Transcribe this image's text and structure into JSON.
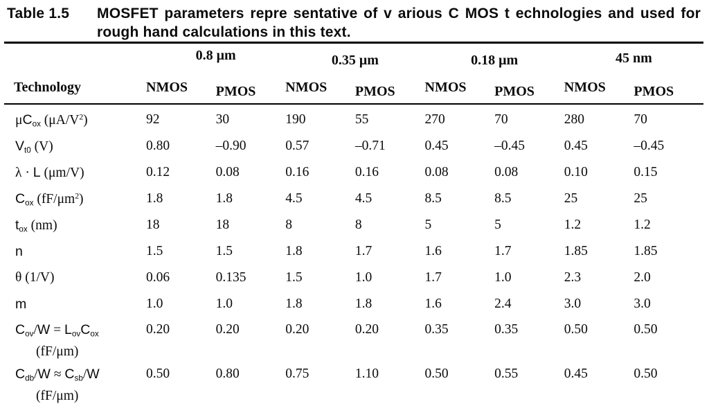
{
  "title": {
    "label": "Table 1.5",
    "caption_lines": [
      "MOSFET parameters repre sentative of v arious C MOS t echnologies and used for",
      "rough hand calculations in this text."
    ]
  },
  "table": {
    "corner_header": "Technology",
    "groups": [
      {
        "label": "0.8 μm"
      },
      {
        "label": "0.35 μm"
      },
      {
        "label": "0.18 μm"
      },
      {
        "label": "45 nm"
      }
    ],
    "subheaders": [
      "NMOS",
      "PMOS",
      "NMOS",
      "PMOS",
      "NMOS",
      "PMOS",
      "NMOS",
      "PMOS"
    ],
    "rows": [
      {
        "name": "mu-cox",
        "label_parts": [
          {
            "t": "μ",
            "f": "ser"
          },
          {
            "t": "C",
            "f": "sym"
          },
          {
            "t": "ox",
            "f": "sym",
            "v": "sub"
          },
          {
            "t": " (μA/V",
            "f": "ser"
          },
          {
            "t": "2",
            "f": "ser",
            "v": "sup"
          },
          {
            "t": ")",
            "f": "ser"
          }
        ],
        "values": [
          "92",
          "30",
          "190",
          "55",
          "270",
          "70",
          "280",
          "70"
        ]
      },
      {
        "name": "vt0",
        "label_parts": [
          {
            "t": "V",
            "f": "sym"
          },
          {
            "t": "t0",
            "f": "sym",
            "v": "sub"
          },
          {
            "t": " (V)",
            "f": "ser"
          }
        ],
        "values": [
          "0.80",
          "–0.90",
          "0.57",
          "–0.71",
          "0.45",
          "–0.45",
          "0.45",
          "–0.45"
        ]
      },
      {
        "name": "lambda-l",
        "label_parts": [
          {
            "t": "λ",
            "f": "ser"
          },
          {
            "t": " · ",
            "f": "ser"
          },
          {
            "t": "L",
            "f": "sym"
          },
          {
            "t": "  (μm/V)",
            "f": "ser"
          }
        ],
        "values": [
          "0.12",
          "0.08",
          "0.16",
          "0.16",
          "0.08",
          "0.08",
          "0.10",
          "0.15"
        ]
      },
      {
        "name": "cox",
        "label_parts": [
          {
            "t": "C",
            "f": "sym"
          },
          {
            "t": "ox",
            "f": "sym",
            "v": "sub"
          },
          {
            "t": " (fF/μm",
            "f": "ser"
          },
          {
            "t": "2",
            "f": "ser",
            "v": "sup"
          },
          {
            "t": ")",
            "f": "ser"
          }
        ],
        "values": [
          "1.8",
          "1.8",
          "4.5",
          "4.5",
          "8.5",
          "8.5",
          "25",
          "25"
        ]
      },
      {
        "name": "tox",
        "label_parts": [
          {
            "t": "t",
            "f": "sym"
          },
          {
            "t": "ox",
            "f": "sym",
            "v": "sub"
          },
          {
            "t": " (nm)",
            "f": "ser"
          }
        ],
        "values": [
          "18",
          "18",
          "8",
          "8",
          "5",
          "5",
          "1.2",
          "1.2"
        ]
      },
      {
        "name": "n",
        "label_parts": [
          {
            "t": "n",
            "f": "sym"
          }
        ],
        "values": [
          "1.5",
          "1.5",
          "1.8",
          "1.7",
          "1.6",
          "1.7",
          "1.85",
          "1.85"
        ]
      },
      {
        "name": "theta",
        "label_parts": [
          {
            "t": "θ",
            "f": "ser"
          },
          {
            "t": " (1/V)",
            "f": "ser"
          }
        ],
        "values": [
          "0.06",
          "0.135",
          "1.5",
          "1.0",
          "1.7",
          "1.0",
          "2.3",
          "2.0"
        ]
      },
      {
        "name": "m",
        "label_parts": [
          {
            "t": "m",
            "f": "sym"
          }
        ],
        "values": [
          "1.0",
          "1.0",
          "1.8",
          "1.8",
          "1.6",
          "2.4",
          "3.0",
          "3.0"
        ]
      },
      {
        "name": "cov-w",
        "label_parts": [
          {
            "t": "C",
            "f": "sym"
          },
          {
            "t": "ov",
            "f": "sym",
            "v": "sub"
          },
          {
            "t": "/",
            "f": "ser"
          },
          {
            "t": "W",
            "f": "sym"
          },
          {
            "t": " = ",
            "f": "ser"
          },
          {
            "t": "L",
            "f": "sym"
          },
          {
            "t": "ov",
            "f": "sym",
            "v": "sub"
          },
          {
            "t": "C",
            "f": "sym"
          },
          {
            "t": "ox",
            "f": "sym",
            "v": "sub"
          }
        ],
        "label_line2": "(fF/μm)",
        "values": [
          "0.20",
          "0.20",
          "0.20",
          "0.20",
          "0.35",
          "0.35",
          "0.50",
          "0.50"
        ]
      },
      {
        "name": "cdb-w",
        "label_parts": [
          {
            "t": "C",
            "f": "sym"
          },
          {
            "t": "db",
            "f": "sym",
            "v": "sub"
          },
          {
            "t": "/",
            "f": "ser"
          },
          {
            "t": "W",
            "f": "sym"
          },
          {
            "t": " ≈ ",
            "f": "ser"
          },
          {
            "t": "C",
            "f": "sym"
          },
          {
            "t": "sb",
            "f": "sym",
            "v": "sub"
          },
          {
            "t": "/",
            "f": "ser"
          },
          {
            "t": "W",
            "f": "sym"
          }
        ],
        "label_line2": "(fF/μm)",
        "values": [
          "0.50",
          "0.80",
          "0.75",
          "1.10",
          "0.50",
          "0.55",
          "0.45",
          "0.50"
        ]
      }
    ]
  },
  "chart_data": {
    "type": "table",
    "title": "Table 1.5 MOSFET parameters representative of various CMOS technologies and used for rough hand calculations in this text.",
    "column_groups": [
      "0.8 μm",
      "0.35 μm",
      "0.18 μm",
      "45 nm"
    ],
    "columns": [
      "0.8um NMOS",
      "0.8um PMOS",
      "0.35um NMOS",
      "0.35um PMOS",
      "0.18um NMOS",
      "0.18um PMOS",
      "45nm NMOS",
      "45nm PMOS"
    ],
    "rows": [
      {
        "parameter": "μCox (μA/V2)",
        "values": [
          92,
          30,
          190,
          55,
          270,
          70,
          280,
          70
        ]
      },
      {
        "parameter": "Vt0 (V)",
        "values": [
          0.8,
          -0.9,
          0.57,
          -0.71,
          0.45,
          -0.45,
          0.45,
          -0.45
        ]
      },
      {
        "parameter": "λ·L (μm/V)",
        "values": [
          0.12,
          0.08,
          0.16,
          0.16,
          0.08,
          0.08,
          0.1,
          0.15
        ]
      },
      {
        "parameter": "Cox (fF/μm2)",
        "values": [
          1.8,
          1.8,
          4.5,
          4.5,
          8.5,
          8.5,
          25,
          25
        ]
      },
      {
        "parameter": "tox (nm)",
        "values": [
          18,
          18,
          8,
          8,
          5,
          5,
          1.2,
          1.2
        ]
      },
      {
        "parameter": "n",
        "values": [
          1.5,
          1.5,
          1.8,
          1.7,
          1.6,
          1.7,
          1.85,
          1.85
        ]
      },
      {
        "parameter": "θ (1/V)",
        "values": [
          0.06,
          0.135,
          1.5,
          1.0,
          1.7,
          1.0,
          2.3,
          2.0
        ]
      },
      {
        "parameter": "m",
        "values": [
          1.0,
          1.0,
          1.8,
          1.8,
          1.6,
          2.4,
          3.0,
          3.0
        ]
      },
      {
        "parameter": "Cov/W = LovCox (fF/μm)",
        "values": [
          0.2,
          0.2,
          0.2,
          0.2,
          0.35,
          0.35,
          0.5,
          0.5
        ]
      },
      {
        "parameter": "Cdb/W ≈ Csb/W (fF/μm)",
        "values": [
          0.5,
          0.8,
          0.75,
          1.1,
          0.5,
          0.55,
          0.45,
          0.5
        ]
      }
    ]
  }
}
